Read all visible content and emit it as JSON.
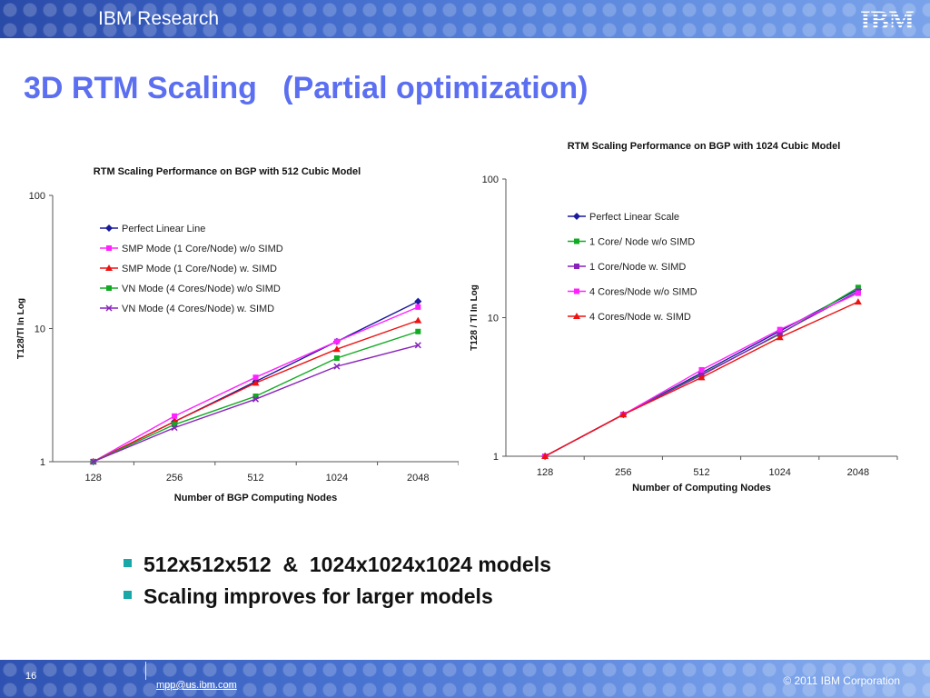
{
  "header": {
    "brand": "IBM Research",
    "logo": "IBM"
  },
  "title": "3D RTM Scaling   (Partial optimization)",
  "chart_data": [
    {
      "type": "line",
      "title": "RTM Scaling Performance on BGP with 512 Cubic Model",
      "xlabel": "Number of BGP Computing Nodes",
      "ylabel": "T128/Tl In Log",
      "y_scale": "log",
      "ylim": [
        1,
        100
      ],
      "yticks": [
        "1",
        "10",
        "100"
      ],
      "categories": [
        "128",
        "256",
        "512",
        "1024",
        "2048"
      ],
      "legend_position": "top-left",
      "grid": false,
      "series": [
        {
          "name": "Perfect  Linear  Line",
          "color": "#1a1a9a",
          "marker": "diamond",
          "values": [
            1,
            2,
            4,
            8,
            16
          ]
        },
        {
          "name": "SMP Mode (1 Core/Node) w/o SIMD",
          "color": "#ff22ff",
          "marker": "square",
          "values": [
            1,
            2.2,
            4.3,
            8,
            14.5
          ]
        },
        {
          "name": "SMP Mode (1 Core/Node) w. SIMD",
          "color": "#ee1111",
          "marker": "triangle",
          "values": [
            1,
            2,
            3.9,
            7,
            11.5
          ]
        },
        {
          "name": "VN Mode (4 Cores/Node) w/o SIMD",
          "color": "#11aa22",
          "marker": "square",
          "values": [
            1,
            1.9,
            3.1,
            6,
            9.5
          ]
        },
        {
          "name": "VN Mode (4 Cores/Node) w. SIMD",
          "color": "#8822bb",
          "marker": "x",
          "values": [
            1,
            1.8,
            2.95,
            5.2,
            7.5
          ]
        }
      ]
    },
    {
      "type": "line",
      "title": "RTM Scaling Performance on BGP with 1024 Cubic Model",
      "xlabel": "Number of Computing Nodes",
      "ylabel": "T128 / Tl In Log",
      "y_scale": "log",
      "ylim": [
        1,
        100
      ],
      "yticks": [
        "1",
        "10",
        "100"
      ],
      "categories": [
        "128",
        "256",
        "512",
        "1024",
        "2048"
      ],
      "legend_position": "top-left",
      "grid": false,
      "series": [
        {
          "name": "Perfect Linear Scale",
          "color": "#1a1a9a",
          "marker": "diamond",
          "values": [
            1,
            2,
            4,
            8,
            16
          ]
        },
        {
          "name": "1 Core/ Node w/o SIMD",
          "color": "#11aa22",
          "marker": "square",
          "values": [
            1,
            2,
            3.9,
            7.6,
            16.5
          ]
        },
        {
          "name": "1 Core/Node w. SIMD",
          "color": "#8822bb",
          "marker": "square",
          "values": [
            1,
            2,
            3.85,
            7.7,
            15.5
          ]
        },
        {
          "name": "4 Cores/Node w/o SIMD",
          "color": "#ff22ff",
          "marker": "square",
          "values": [
            1,
            2,
            4.2,
            8.2,
            15
          ]
        },
        {
          "name": "4 Cores/Node w. SIMD",
          "color": "#ee1111",
          "marker": "triangle",
          "values": [
            1,
            2,
            3.7,
            7.2,
            13
          ]
        }
      ]
    }
  ],
  "bullets": [
    "512x512x512  &  1024x1024x1024 models",
    "Scaling improves for larger models"
  ],
  "footer": {
    "page_number": "16",
    "email": "mpp@us.ibm.com",
    "copyright": "© 2011 IBM Corporation"
  }
}
